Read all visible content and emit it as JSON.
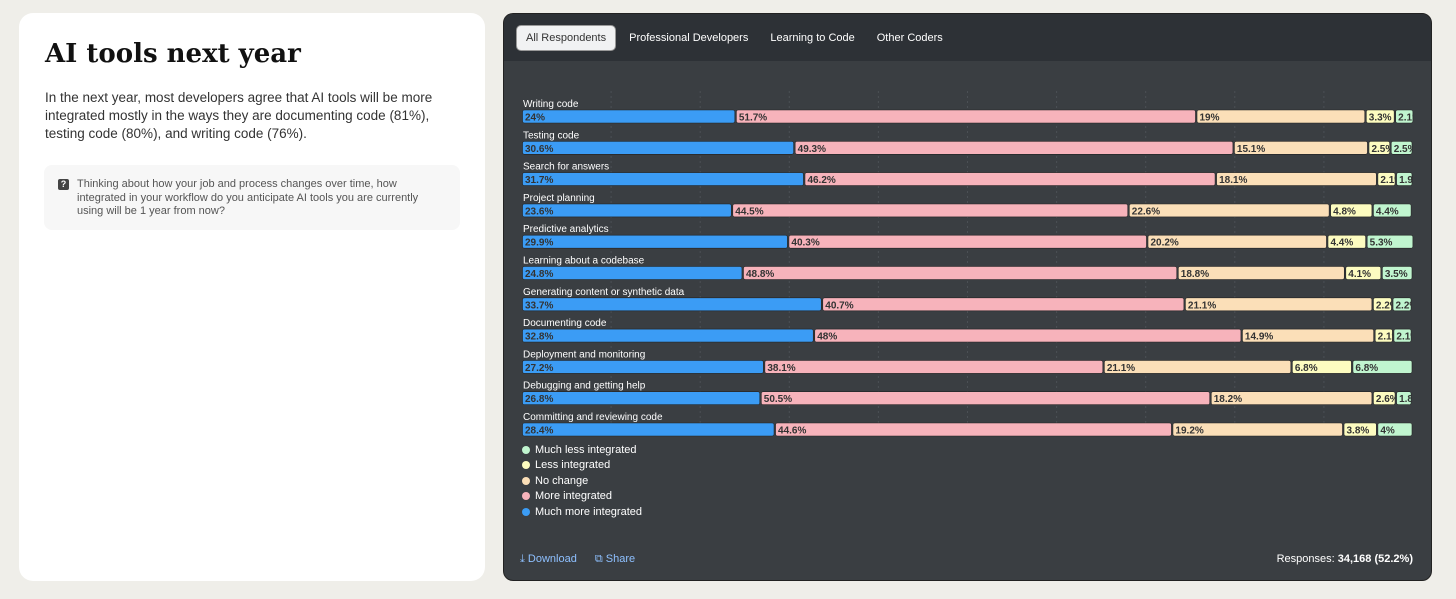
{
  "left": {
    "title": "AI tools next year",
    "description": "In the next year, most developers agree that AI tools will be more integrated mostly in the ways they are documenting code (81%), testing code (80%), and writing code (76%).",
    "question": "Thinking about how your job and process changes over time, how integrated in your workflow do you anticipate AI tools you are currently using will be 1 year from now?",
    "question_icon": "?"
  },
  "tabs": [
    "All Respondents",
    "Professional Developers",
    "Learning to Code",
    "Other Coders"
  ],
  "footer": {
    "download": "Download",
    "share": "Share",
    "responses_label": "Responses:",
    "responses_value": "34,168",
    "responses_pct": "(52.2%)"
  },
  "chart_data": {
    "type": "bar",
    "stacked": true,
    "orientation": "horizontal",
    "xlim": [
      0,
      100
    ],
    "categories": [
      "Writing code",
      "Testing code",
      "Search for answers",
      "Project planning",
      "Predictive analytics",
      "Learning about a codebase",
      "Generating content or synthetic data",
      "Documenting code",
      "Deployment and monitoring",
      "Debugging and getting help",
      "Committing and reviewing code"
    ],
    "series": [
      {
        "name": "Much more integrated",
        "color": "#3b9cf5",
        "values": [
          24,
          30.6,
          31.7,
          23.6,
          29.9,
          24.8,
          33.7,
          32.8,
          27.2,
          26.8,
          28.4
        ]
      },
      {
        "name": "More integrated",
        "color": "#f7b3bb",
        "values": [
          51.7,
          49.3,
          46.2,
          44.5,
          40.3,
          48.8,
          40.7,
          48,
          38.1,
          50.5,
          44.6
        ]
      },
      {
        "name": "No change",
        "color": "#fbdfb8",
        "values": [
          19,
          15.1,
          18.1,
          22.6,
          20.2,
          18.8,
          21.1,
          14.9,
          21.1,
          18.2,
          19.2
        ]
      },
      {
        "name": "Less integrated",
        "color": "#fdfcc0",
        "values": [
          3.3,
          2.5,
          2.1,
          4.8,
          4.4,
          4.1,
          2.2,
          2.1,
          6.8,
          2.6,
          3.8
        ]
      },
      {
        "name": "Much less integrated",
        "color": "#c0f5cf",
        "values": [
          2.1,
          2.5,
          1.9,
          4.4,
          5.3,
          3.5,
          2.2,
          2.1,
          6.8,
          1.8,
          4
        ]
      }
    ],
    "legend_order": [
      "Much less integrated",
      "Less integrated",
      "No change",
      "More integrated",
      "Much more integrated"
    ],
    "grid": true
  }
}
